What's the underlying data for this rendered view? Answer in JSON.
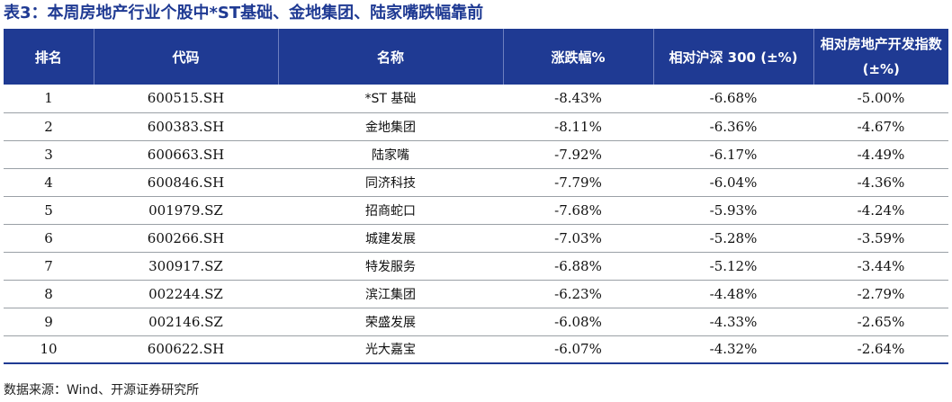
{
  "caption": "表3：本周房地产行业个股中*ST基础、金地集团、陆家嘴跌幅靠前",
  "columns": {
    "rank": "排名",
    "code": "代码",
    "name": "名称",
    "change": "涨跌幅%",
    "rel_hs300": "相对沪深 300 (±%)",
    "rel_index_line1": "相对房地产开发指数",
    "rel_index_line2": "(±%)"
  },
  "rows": [
    {
      "rank": "1",
      "code": "600515.SH",
      "name": "*ST 基础",
      "change": "-8.43%",
      "rel_hs300": "-6.68%",
      "rel_index": "-5.00%"
    },
    {
      "rank": "2",
      "code": "600383.SH",
      "name": "金地集团",
      "change": "-8.11%",
      "rel_hs300": "-6.36%",
      "rel_index": "-4.67%"
    },
    {
      "rank": "3",
      "code": "600663.SH",
      "name": "陆家嘴",
      "change": "-7.92%",
      "rel_hs300": "-6.17%",
      "rel_index": "-4.49%"
    },
    {
      "rank": "4",
      "code": "600846.SH",
      "name": "同济科技",
      "change": "-7.79%",
      "rel_hs300": "-6.04%",
      "rel_index": "-4.36%"
    },
    {
      "rank": "5",
      "code": "001979.SZ",
      "name": "招商蛇口",
      "change": "-7.68%",
      "rel_hs300": "-5.93%",
      "rel_index": "-4.24%"
    },
    {
      "rank": "6",
      "code": "600266.SH",
      "name": "城建发展",
      "change": "-7.03%",
      "rel_hs300": "-5.28%",
      "rel_index": "-3.59%"
    },
    {
      "rank": "7",
      "code": "300917.SZ",
      "name": "特发服务",
      "change": "-6.88%",
      "rel_hs300": "-5.12%",
      "rel_index": "-3.44%"
    },
    {
      "rank": "8",
      "code": "002244.SZ",
      "name": "滨江集团",
      "change": "-6.23%",
      "rel_hs300": "-4.48%",
      "rel_index": "-2.79%"
    },
    {
      "rank": "9",
      "code": "002146.SZ",
      "name": "荣盛发展",
      "change": "-6.08%",
      "rel_hs300": "-4.33%",
      "rel_index": "-2.65%"
    },
    {
      "rank": "10",
      "code": "600622.SH",
      "name": "光大嘉宝",
      "change": "-6.07%",
      "rel_hs300": "-4.32%",
      "rel_index": "-2.64%"
    }
  ],
  "source": "数据来源：Wind、开源证券研究所",
  "colors": {
    "header_bg": "#1f3a93",
    "caption_text": "#1f3a93"
  }
}
